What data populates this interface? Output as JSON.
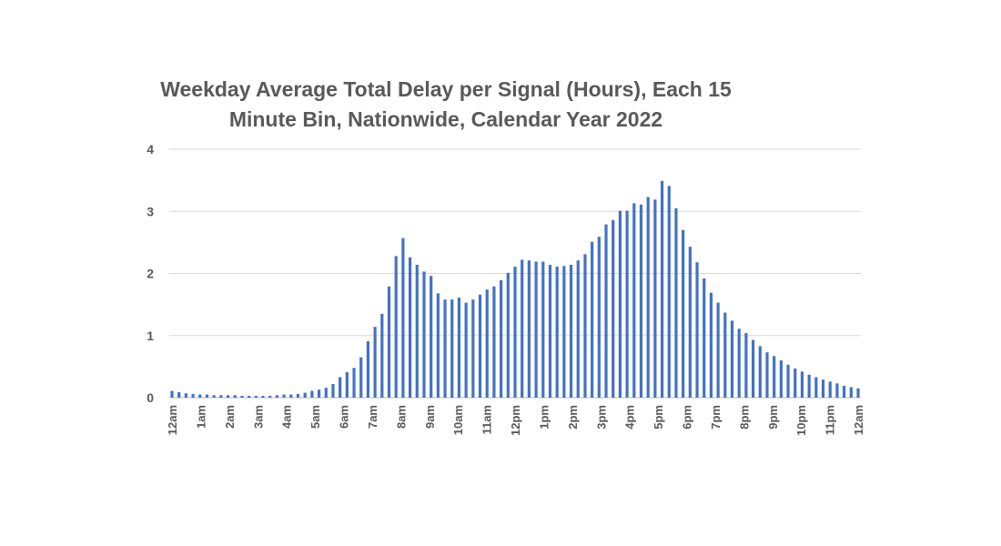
{
  "chart_data": {
    "type": "bar",
    "title_lines": [
      "Weekday Average Total Delay per Signal (Hours), Each 15",
      "Minute Bin, Nationwide, Calendar Year 2022"
    ],
    "xlabel": "",
    "ylabel": "",
    "ylim": [
      0,
      4
    ],
    "yticks": [
      "0",
      "1",
      "2",
      "3",
      "4"
    ],
    "grid": true,
    "color": "#4472C4",
    "x_tick_labels": [
      "12am",
      "1am",
      "2am",
      "3am",
      "4am",
      "5am",
      "6am",
      "7am",
      "8am",
      "9am",
      "10am",
      "11am",
      "12pm",
      "1pm",
      "2pm",
      "3pm",
      "4pm",
      "5pm",
      "6pm",
      "7pm",
      "8pm",
      "9pm",
      "10pm",
      "11pm",
      "12am"
    ],
    "values": [
      0.11,
      0.09,
      0.07,
      0.06,
      0.05,
      0.05,
      0.04,
      0.04,
      0.04,
      0.04,
      0.03,
      0.03,
      0.03,
      0.03,
      0.03,
      0.04,
      0.05,
      0.05,
      0.06,
      0.08,
      0.11,
      0.13,
      0.16,
      0.22,
      0.33,
      0.41,
      0.48,
      0.65,
      0.91,
      1.14,
      1.35,
      1.79,
      2.28,
      2.57,
      2.26,
      2.14,
      2.03,
      1.96,
      1.68,
      1.58,
      1.58,
      1.61,
      1.53,
      1.58,
      1.66,
      1.74,
      1.79,
      1.89,
      2.01,
      2.11,
      2.22,
      2.21,
      2.19,
      2.19,
      2.14,
      2.11,
      2.12,
      2.14,
      2.21,
      2.31,
      2.51,
      2.59,
      2.79,
      2.86,
      3.01,
      3.01,
      3.13,
      3.11,
      3.23,
      3.19,
      3.49,
      3.41,
      3.05,
      2.7,
      2.43,
      2.18,
      1.92,
      1.69,
      1.53,
      1.37,
      1.24,
      1.11,
      1.04,
      0.93,
      0.83,
      0.73,
      0.67,
      0.6,
      0.53,
      0.47,
      0.42,
      0.37,
      0.33,
      0.29,
      0.26,
      0.23,
      0.19,
      0.17,
      0.15
    ]
  }
}
